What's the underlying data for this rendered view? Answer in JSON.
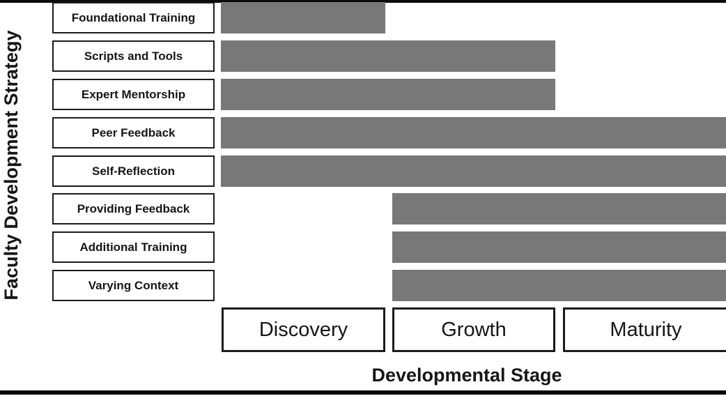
{
  "figure": {
    "y_axis_label": "Faculty Development Strategy",
    "x_axis_label": "Developmental Stage"
  },
  "colors": {
    "bar_fill": "#787878",
    "box_border": "#1b1b1b",
    "frame": "#0a0a0a",
    "background": "#ffffff",
    "text": "#161616"
  },
  "chart_data": {
    "type": "bar",
    "subtype": "horizontal-span-gantt",
    "title": "",
    "ylabel": "Faculty Development Strategy",
    "xlabel": "Developmental Stage",
    "grid": false,
    "legend": null,
    "stages": [
      "Discovery",
      "Growth",
      "Maturity"
    ],
    "rows": [
      {
        "label": "Foundational Training",
        "start_stage": "Discovery",
        "end_stage": "Discovery",
        "start": 0,
        "end": 0
      },
      {
        "label": "Scripts and Tools",
        "start_stage": "Discovery",
        "end_stage": "Growth",
        "start": 0,
        "end": 1
      },
      {
        "label": "Expert Mentorship",
        "start_stage": "Discovery",
        "end_stage": "Growth",
        "start": 0,
        "end": 1
      },
      {
        "label": "Peer Feedback",
        "start_stage": "Discovery",
        "end_stage": "Maturity",
        "start": 0,
        "end": 2
      },
      {
        "label": "Self-Reflection",
        "start_stage": "Discovery",
        "end_stage": "Maturity",
        "start": 0,
        "end": 2
      },
      {
        "label": "Providing Feedback",
        "start_stage": "Growth",
        "end_stage": "Maturity",
        "start": 1,
        "end": 2
      },
      {
        "label": "Additional Training",
        "start_stage": "Growth",
        "end_stage": "Maturity",
        "start": 1,
        "end": 2
      },
      {
        "label": "Varying Context",
        "start_stage": "Growth",
        "end_stage": "Maturity",
        "start": 1,
        "end": 2
      }
    ]
  }
}
